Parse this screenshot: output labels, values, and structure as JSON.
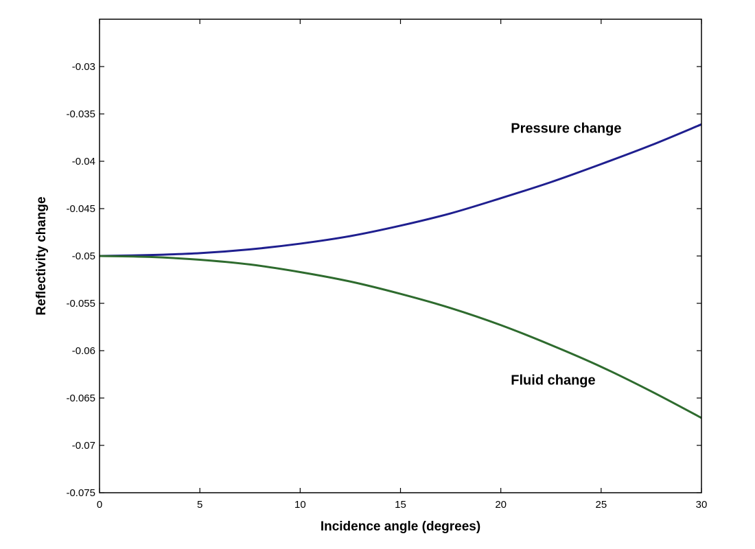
{
  "chart_data": {
    "type": "line",
    "xlabel": "Incidence angle (degrees)",
    "ylabel": "Reflectivity change",
    "xlim": [
      0,
      30
    ],
    "ylim": [
      -0.075,
      -0.025
    ],
    "x_ticks": [
      0,
      5,
      10,
      15,
      20,
      25,
      30
    ],
    "x_tick_labels": [
      "0",
      "5",
      "10",
      "15",
      "20",
      "25",
      "30"
    ],
    "y_ticks": [
      -0.03,
      -0.035,
      -0.04,
      -0.045,
      -0.05,
      -0.055,
      -0.06,
      -0.065,
      -0.07,
      -0.075
    ],
    "y_tick_labels": [
      "-0.03",
      "-0.035",
      "-0.04",
      "-0.045",
      "-0.05",
      "-0.055",
      "-0.06",
      "-0.065",
      "-0.07",
      "-0.075"
    ],
    "grid": false,
    "series": [
      {
        "name": "Pressure change",
        "color": "#1f1f8f",
        "x": [
          0,
          2.5,
          5,
          7.5,
          10,
          12.5,
          15,
          17.5,
          20,
          22.5,
          25,
          27.5,
          30
        ],
        "values": [
          -0.05,
          -0.0499,
          -0.0497,
          -0.0493,
          -0.0487,
          -0.0479,
          -0.0468,
          -0.0455,
          -0.0439,
          -0.0422,
          -0.0403,
          -0.0383,
          -0.0361
        ]
      },
      {
        "name": "Fluid change",
        "color": "#2e6b2e",
        "x": [
          0,
          2.5,
          5,
          7.5,
          10,
          12.5,
          15,
          17.5,
          20,
          22.5,
          25,
          27.5,
          30
        ],
        "values": [
          -0.05,
          -0.0501,
          -0.0504,
          -0.0509,
          -0.0517,
          -0.0527,
          -0.054,
          -0.0555,
          -0.0573,
          -0.0594,
          -0.0617,
          -0.0643,
          -0.0671
        ]
      }
    ],
    "annotations": [
      {
        "text": "Pressure change",
        "x": 20.5,
        "y": -0.037
      },
      {
        "text": "Fluid change",
        "x": 20.5,
        "y": -0.0636
      }
    ]
  }
}
